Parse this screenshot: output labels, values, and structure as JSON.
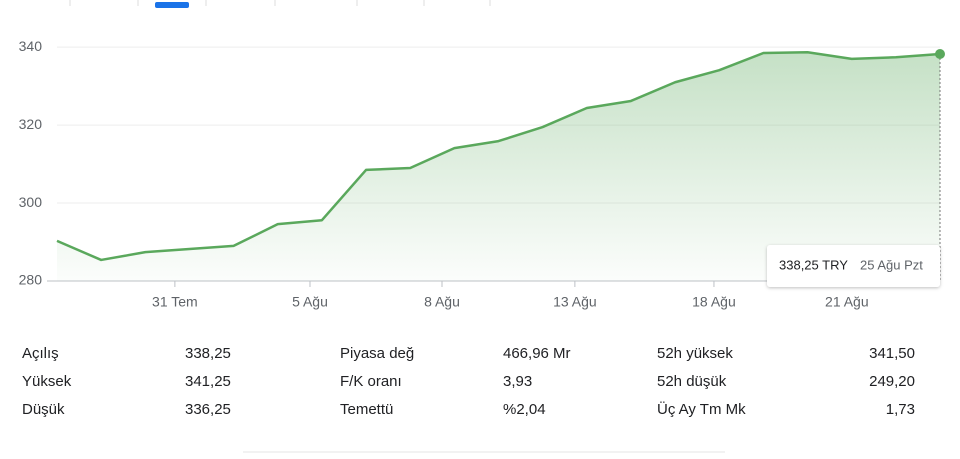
{
  "chart_data": {
    "type": "line",
    "x": [
      0,
      1,
      2,
      3,
      4,
      5,
      6,
      7,
      8,
      9,
      10,
      11,
      12,
      13,
      14,
      15,
      16,
      17,
      18,
      19,
      20
    ],
    "series": [
      {
        "name": "TRY",
        "color": "#5aa85c",
        "values": [
          290.3,
          285.4,
          287.4,
          288.2,
          289.0,
          294.6,
          295.6,
          308.5,
          309.0,
          314.1,
          315.9,
          319.5,
          324.4,
          326.2,
          331.0,
          334.1,
          338.5,
          338.7,
          337.0,
          337.4,
          338.25
        ]
      }
    ],
    "xlim": [
      0,
      20
    ],
    "xticks": [
      {
        "value": 2.67,
        "label": "31 Tem"
      },
      {
        "value": 5.73,
        "label": "5 Ağu"
      },
      {
        "value": 8.72,
        "label": "8 Ağu"
      },
      {
        "value": 11.73,
        "label": "13 Ağu"
      },
      {
        "value": 14.88,
        "label": "18 Ağu"
      },
      {
        "value": 17.89,
        "label": "21 Ağu"
      }
    ],
    "ylim": [
      280,
      348
    ],
    "yticks": [
      280,
      300,
      320,
      340
    ],
    "grid": true,
    "tooltip": {
      "price": "338,25 TRY",
      "date": "25 Ağu Pzt"
    }
  },
  "stats": [
    {
      "label": "Açılış",
      "value": "338,25"
    },
    {
      "label": "Yüksek",
      "value": "341,25"
    },
    {
      "label": "Düşük",
      "value": "336,25"
    },
    {
      "label": "Piyasa değ",
      "value": "466,96 Mr"
    },
    {
      "label": "F/K oranı",
      "value": "3,93"
    },
    {
      "label": "Temettü",
      "value": "%2,04"
    },
    {
      "label": "52h yüksek",
      "value": "341,50"
    },
    {
      "label": "52h düşük",
      "value": "249,20"
    },
    {
      "label": "Üç Ay Tm Mk",
      "value": "1,73"
    }
  ]
}
